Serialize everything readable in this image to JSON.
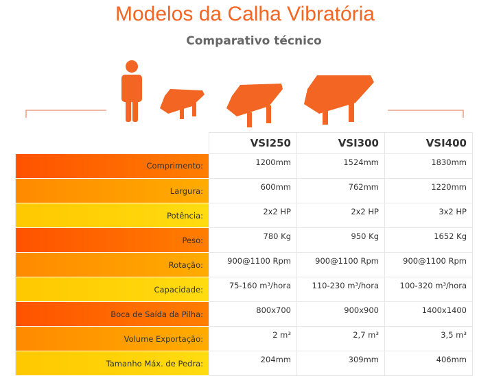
{
  "header": {
    "title": "Modelos da Calha Vibratória",
    "subtitle": "Comparativo técnico"
  },
  "table": {
    "columns": [
      "VSI250",
      "VSI300",
      "VSI400"
    ],
    "rows": [
      {
        "label": "Comprimento:",
        "values": [
          "1200mm",
          "1524mm",
          "1830mm"
        ]
      },
      {
        "label": "Largura:",
        "values": [
          "600mm",
          "762mm",
          "1220mm"
        ]
      },
      {
        "label": "Potência:",
        "values": [
          "2x2 HP",
          "2x2 HP",
          "3x2 HP"
        ]
      },
      {
        "label": "Peso:",
        "values": [
          "780 Kg",
          "950 Kg",
          "1652 Kg"
        ]
      },
      {
        "label": "Rotação:",
        "values": [
          "900@1100 Rpm",
          "900@1100 Rpm",
          "900@1100 Rpm"
        ]
      },
      {
        "label": "Capacidade:",
        "values": [
          "75-160 m³/hora",
          "110-230 m³/hora",
          "100-320 m³/hora"
        ]
      },
      {
        "label": "Boca de Saída da Pilha:",
        "values": [
          "800x700",
          "900x900",
          "1400x1400"
        ]
      },
      {
        "label": "Volume Exportação:",
        "values": [
          "2 m³",
          "2,7 m³",
          "3,5 m³"
        ]
      },
      {
        "label": "Tamanho Máx. de Pedra:",
        "values": [
          "204mm",
          "309mm",
          "406mm"
        ]
      }
    ]
  }
}
